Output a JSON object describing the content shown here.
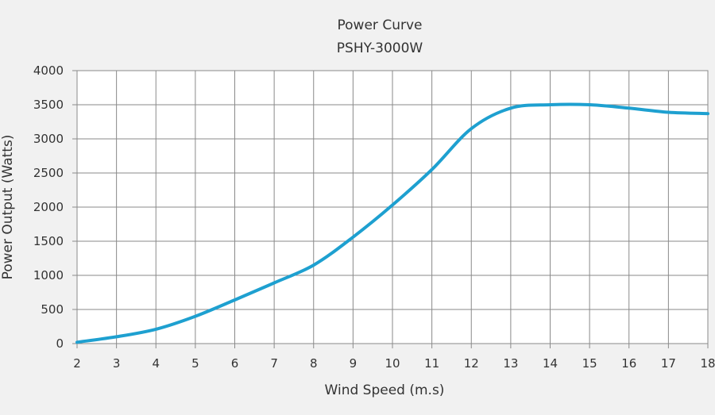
{
  "chart_data": {
    "type": "line",
    "title": "Power Curve",
    "subtitle": "PSHY-3000W",
    "xlabel": "Wind Speed (m.s)",
    "ylabel": "Power Output (Watts)",
    "xlim": [
      2,
      18
    ],
    "ylim": [
      0,
      4000
    ],
    "x_ticks": [
      2,
      3,
      4,
      5,
      6,
      7,
      8,
      9,
      10,
      11,
      12,
      13,
      14,
      15,
      16,
      17,
      18
    ],
    "y_ticks": [
      0,
      500,
      1000,
      1500,
      2000,
      2500,
      3000,
      3500,
      4000
    ],
    "grid": true,
    "series": [
      {
        "color": "#1ea0d0",
        "x": [
          2,
          3,
          4,
          5,
          6,
          7,
          8,
          9,
          10,
          11,
          12,
          13,
          14,
          15,
          16,
          17,
          18
        ],
        "y": [
          20,
          100,
          210,
          400,
          640,
          890,
          1150,
          1560,
          2030,
          2550,
          3150,
          3450,
          3500,
          3500,
          3450,
          3390,
          3370
        ]
      }
    ]
  }
}
